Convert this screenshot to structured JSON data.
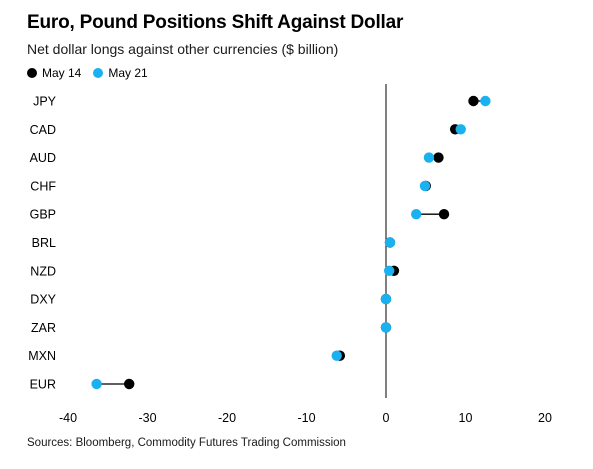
{
  "chart_data": {
    "type": "dot",
    "title": "Euro, Pound Positions Shift Against Dollar",
    "subtitle": "Net dollar longs against other currencies ($ billion)",
    "source": "Sources: Bloomberg, Commodity Futures Trading Commission",
    "categories": [
      "JPY",
      "CAD",
      "AUD",
      "CHF",
      "GBP",
      "BRL",
      "NZD",
      "DXY",
      "ZAR",
      "MXN",
      "EUR"
    ],
    "series": [
      {
        "name": "May 14",
        "color": "#000000",
        "values": [
          11.0,
          8.7,
          6.6,
          5.0,
          7.3,
          0.5,
          1.0,
          0.0,
          0.0,
          -5.8,
          -32.3
        ]
      },
      {
        "name": "May 21",
        "color": "#1ab1f0",
        "values": [
          12.5,
          9.4,
          5.4,
          4.9,
          3.8,
          0.5,
          0.4,
          0.0,
          0.0,
          -6.2,
          -36.4
        ]
      }
    ],
    "xlim": [
      -40,
      20
    ],
    "xticks": [
      "-40",
      "-30",
      "-20",
      "-10",
      "0",
      "10",
      "20"
    ],
    "grid": false,
    "legend_position": "top-left"
  }
}
